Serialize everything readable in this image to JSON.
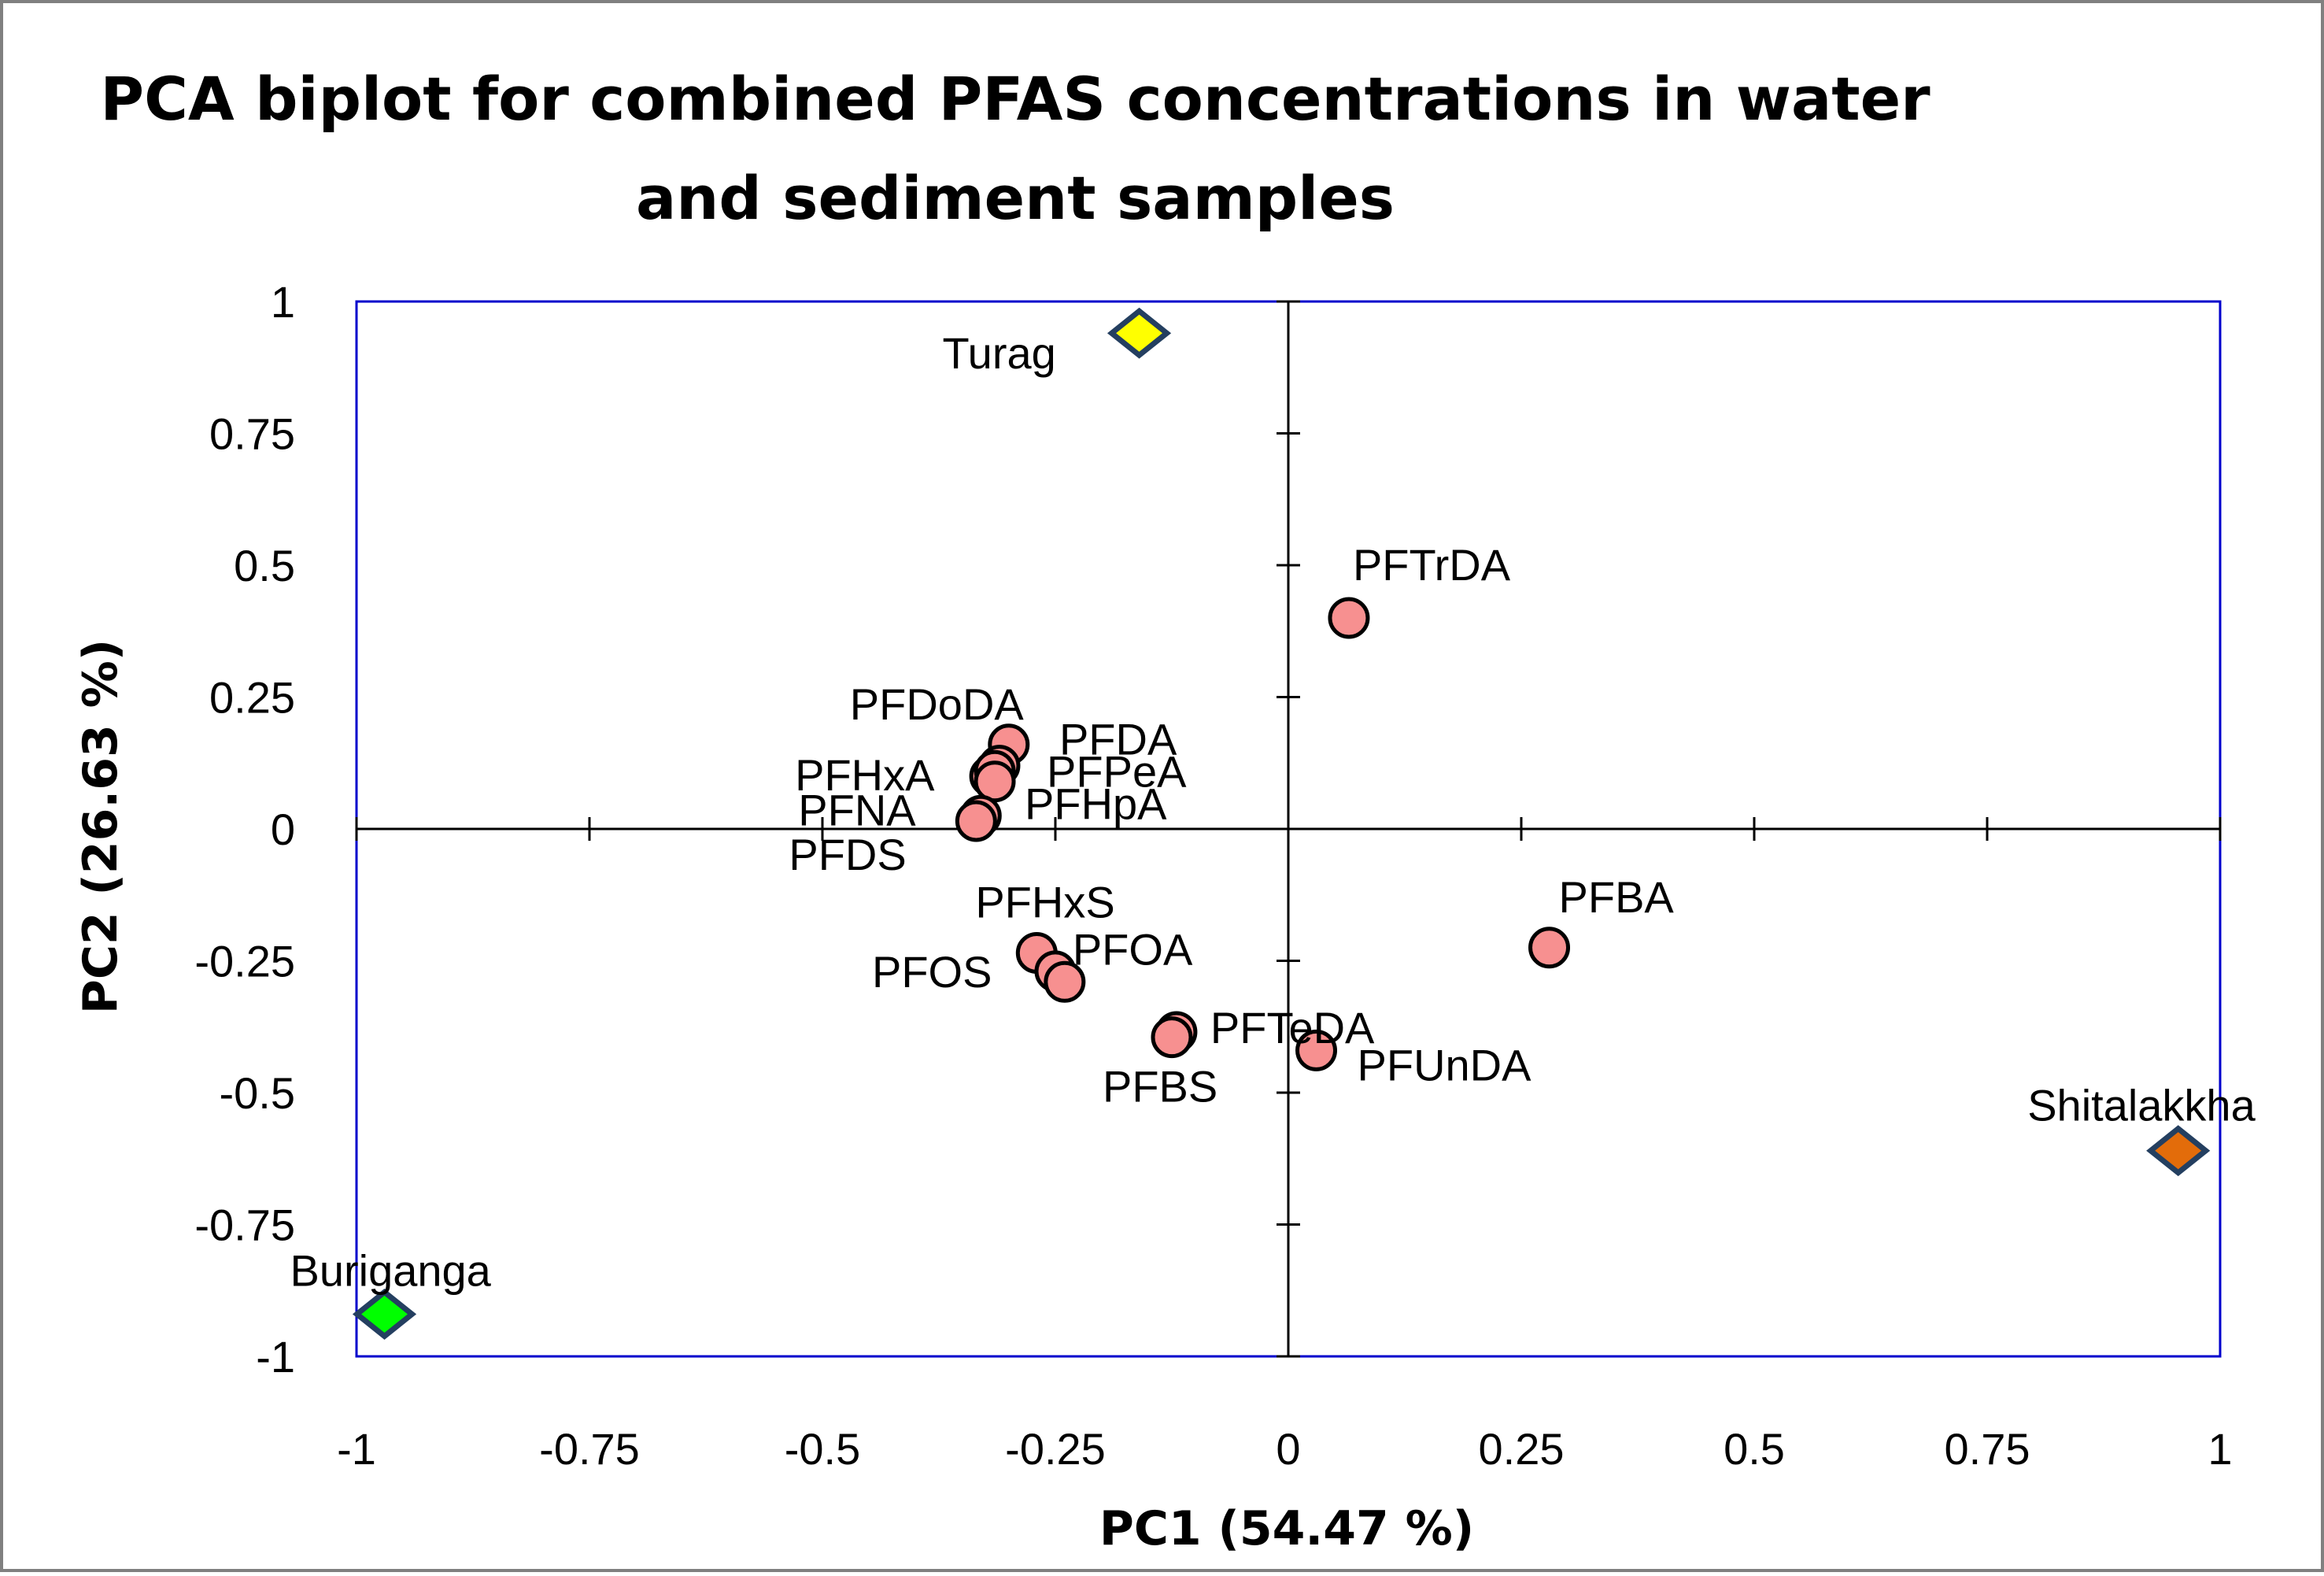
{
  "chart_data": {
    "type": "scatter",
    "title": "PCA biplot for combined PFAS concentrations in water and sediment samples",
    "title_lines": [
      "PCA biplot for combined PFAS concentrations in water",
      "and sediment samples"
    ],
    "xlabel": "PC1 (54.47 %)",
    "ylabel": "PC2 (26.63 %)",
    "xlim": [
      -1,
      1
    ],
    "ylim": [
      -1,
      1
    ],
    "x_ticks": [
      "-1",
      "-0.75",
      "-0.5",
      "-0.25",
      "0",
      "0.25",
      "0.5",
      "0.75",
      "1"
    ],
    "y_ticks": [
      "1",
      "0.75",
      "0.5",
      "0.25",
      "0",
      "-0.25",
      "-0.5",
      "-0.75",
      "-1"
    ],
    "grid": false,
    "variables": [
      {
        "name": "PFTrDA",
        "x": 0.065,
        "y": 0.4
      },
      {
        "name": "PFDoDA",
        "x": -0.3,
        "y": 0.16
      },
      {
        "name": "PFDA",
        "x": -0.31,
        "y": 0.12
      },
      {
        "name": "PFHxA",
        "x": -0.32,
        "y": 0.1
      },
      {
        "name": "PFPeA",
        "x": -0.315,
        "y": 0.11
      },
      {
        "name": "PFHpA",
        "x": -0.315,
        "y": 0.09
      },
      {
        "name": "PFNA",
        "x": -0.33,
        "y": 0.025
      },
      {
        "name": "PFDS",
        "x": -0.335,
        "y": 0.015
      },
      {
        "name": "PFHxS",
        "x": -0.27,
        "y": -0.235
      },
      {
        "name": "PFOS",
        "x": -0.25,
        "y": -0.27
      },
      {
        "name": "PFOA",
        "x": -0.24,
        "y": -0.29
      },
      {
        "name": "PFTeDA",
        "x": -0.12,
        "y": -0.385
      },
      {
        "name": "PFBS",
        "x": -0.125,
        "y": -0.395
      },
      {
        "name": "PFUnDA",
        "x": 0.03,
        "y": -0.42
      },
      {
        "name": "PFBA",
        "x": 0.28,
        "y": -0.225
      }
    ],
    "observations": [
      {
        "name": "Turag",
        "x": -0.16,
        "y": 0.94,
        "color": "#ffff00"
      },
      {
        "name": "Shitalakkha",
        "x": 0.955,
        "y": -0.61,
        "color": "#e36c0a"
      },
      {
        "name": "Buriganga",
        "x": -0.97,
        "y": -0.92,
        "color": "#00ff00"
      }
    ],
    "colors": {
      "variable_fill": "#f79090",
      "variable_stroke": "#000000",
      "observation_stroke": "#243f60",
      "plot_border": "#0000cc",
      "axis_line": "#000000",
      "frame_border": "#808080"
    }
  }
}
